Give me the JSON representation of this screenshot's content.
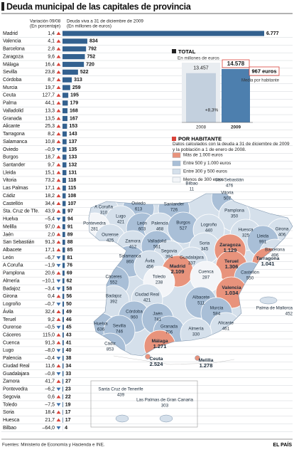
{
  "header": {
    "title": "Deuda municipal de las capitales de provincia"
  },
  "ranking": {
    "change_heading": "Variación 09/08",
    "change_unit": "(En porcentaje)",
    "debt_heading": "Deuda viva a 31 de diciembre de 2009",
    "debt_unit": "(En millones de euros)",
    "rows": [
      {
        "city": "Madrid",
        "change": "1,4",
        "debt": 6777,
        "debt_label": "6.777"
      },
      {
        "city": "Valencia",
        "change": "4,1",
        "debt": 834
      },
      {
        "city": "Barcelona",
        "change": "2,8",
        "debt": 792
      },
      {
        "city": "Zaragoza",
        "change": "9,6",
        "debt": 752
      },
      {
        "city": "Málaga",
        "change": "16,4",
        "debt": 720
      },
      {
        "city": "Sevilla",
        "change": "23,8",
        "debt": 522
      },
      {
        "city": "Córdoba",
        "change": "8,7",
        "debt": 313
      },
      {
        "city": "Murcia",
        "change": "19,7",
        "debt": 259
      },
      {
        "city": "Ceuta",
        "change": "127,7",
        "debt": 195
      },
      {
        "city": "Palma",
        "change": "44,1",
        "debt": 179
      },
      {
        "city": "Valladolid",
        "change": "13,3",
        "debt": 168
      },
      {
        "city": "Granada",
        "change": "13,5",
        "debt": 167
      },
      {
        "city": "Alicante",
        "change": "25,3",
        "debt": 153
      },
      {
        "city": "Tarragona",
        "change": "8,2",
        "debt": 143
      },
      {
        "city": "Salamanca",
        "change": "10,8",
        "debt": 137
      },
      {
        "city": "Oviedo",
        "change": "–0,9",
        "debt": 135
      },
      {
        "city": "Burgos",
        "change": "18,7",
        "debt": 133
      },
      {
        "city": "Santander",
        "change": "9,7",
        "debt": 132
      },
      {
        "city": "Lleida",
        "change": "15,1",
        "debt": 131
      },
      {
        "city": "Vitoria",
        "change": "73,2",
        "debt": 118
      },
      {
        "city": "Las Palmas",
        "change": "17,1",
        "debt": 115
      },
      {
        "city": "Cádiz",
        "change": "18,2",
        "debt": 108
      },
      {
        "city": "Castellón",
        "change": "34,4",
        "debt": 107
      },
      {
        "city": "Sta. Cruz de Tfe.",
        "change": "43,9",
        "debt": 97
      },
      {
        "city": "Huelva",
        "change": "–5,4",
        "debt": 94
      },
      {
        "city": "Melilla",
        "change": "97,0",
        "debt": 91
      },
      {
        "city": "Jaén",
        "change": "2,0",
        "debt": 89
      },
      {
        "city": "San Sebastián",
        "change": "91,3",
        "debt": 88
      },
      {
        "city": "Albacete",
        "change": "17,1",
        "debt": 85
      },
      {
        "city": "León",
        "change": "–6,7",
        "debt": 81
      },
      {
        "city": "A Coruña",
        "change": "–1,9",
        "debt": 76
      },
      {
        "city": "Pamplona",
        "change": "20,6",
        "debt": 69
      },
      {
        "city": "Almería",
        "change": "–10,1",
        "debt": 62
      },
      {
        "city": "Badajoz",
        "change": "–3,4",
        "debt": 58
      },
      {
        "city": "Girona",
        "change": "0,4",
        "debt": 56
      },
      {
        "city": "Logroño",
        "change": "–0,7",
        "debt": 50
      },
      {
        "city": "Ávila",
        "change": "32,4",
        "debt": 49
      },
      {
        "city": "Teruel",
        "change": "9,2",
        "debt": 46
      },
      {
        "city": "Ourense",
        "change": "–0,5",
        "debt": 45
      },
      {
        "city": "Cáceres",
        "change": "115,0",
        "debt": 43
      },
      {
        "city": "Cuenca",
        "change": "91,3",
        "debt": 41
      },
      {
        "city": "Lugo",
        "change": "–8,0",
        "debt": 40
      },
      {
        "city": "Palencia",
        "change": "–0,4",
        "debt": 38
      },
      {
        "city": "Ciudad Real",
        "change": "11,6",
        "debt": 34
      },
      {
        "city": "Guadalajara",
        "change": "–0,8",
        "debt": 33
      },
      {
        "city": "Zamora",
        "change": "41,7",
        "debt": 27
      },
      {
        "city": "Pontevedra",
        "change": "–6,2",
        "debt": 23
      },
      {
        "city": "Segovia",
        "change": "0,6",
        "debt": 22
      },
      {
        "city": "Toledo",
        "change": "–7,5",
        "debt": 19
      },
      {
        "city": "Soria",
        "change": "18,4",
        "debt": 17
      },
      {
        "city": "Huesca",
        "change": "21,7",
        "debt": 17
      },
      {
        "city": "Bilbao",
        "change": "–64,0",
        "debt": 4
      }
    ]
  },
  "total": {
    "title": "TOTAL",
    "unit": "En millones de euros",
    "years": [
      "2008",
      "2009"
    ],
    "values": [
      13457,
      14578
    ],
    "value_labels": [
      "13.457",
      "14.578"
    ],
    "change": "+8,3%",
    "per_capita": "967 euros",
    "per_capita_caption": "Media por habitante"
  },
  "per_capita": {
    "title": "POR HABITANTE",
    "note": "Datos calculados con la deuda a 31 de diciembre de 2009 y la población a 1 de enero de 2008.",
    "legend": [
      {
        "label": "Más de 1.000 euros",
        "min": 1000,
        "color": "#e8937c"
      },
      {
        "label": "Entre 500 y 1.000 euros",
        "min": 500,
        "color": "#a9bfd7"
      },
      {
        "label": "Entre 300 y 500 euros",
        "min": 300,
        "color": "#d5e0eb"
      },
      {
        "label": "Menos de 300 euros",
        "min": 0,
        "color": "#f3f5f8"
      }
    ],
    "cities": [
      {
        "name": "Bilbao",
        "value": 11
      },
      {
        "name": "San Sebastián",
        "value": 476
      },
      {
        "name": "Vitoria",
        "value": 507
      },
      {
        "name": "Oviedo",
        "value": 613
      },
      {
        "name": "Santander",
        "value": 726
      },
      {
        "name": "A Coruña",
        "value": 310
      },
      {
        "name": "Lugo",
        "value": 421
      },
      {
        "name": "Pamplona",
        "value": 350
      },
      {
        "name": "Pontevedra",
        "value": 281
      },
      {
        "name": "León",
        "value": 603
      },
      {
        "name": "Palencia",
        "value": 468
      },
      {
        "name": "Burgos",
        "value": 527
      },
      {
        "name": "Logroño",
        "value": 440
      },
      {
        "name": "Huesca",
        "value": 325
      },
      {
        "name": "Girona",
        "value": 406
      },
      {
        "name": "Ourense",
        "value": 425
      },
      {
        "name": "Zamora",
        "value": 412
      },
      {
        "name": "Valladolid",
        "value": 561
      },
      {
        "name": "Soria",
        "value": 345
      },
      {
        "name": "Zaragoza",
        "value": 1129,
        "value_label": "1.129"
      },
      {
        "name": "Lleida",
        "value": 991
      },
      {
        "name": "Barcelona",
        "value": 496
      },
      {
        "name": "Salamanca",
        "value": 860
      },
      {
        "name": "Segovia",
        "value": 394
      },
      {
        "name": "Guadalajara",
        "value": 337
      },
      {
        "name": "Ávila",
        "value": 456
      },
      {
        "name": "Madrid",
        "value": 2109,
        "value_label": "2.109"
      },
      {
        "name": "Teruel",
        "value": 1306,
        "value_label": "1.306"
      },
      {
        "name": "Tarragona",
        "value": 1041,
        "value_label": "1.041"
      },
      {
        "name": "Toledo",
        "value": 238
      },
      {
        "name": "Cuenca",
        "value": 287
      },
      {
        "name": "Castellón",
        "value": 550
      },
      {
        "name": "Cáceres",
        "value": 552
      },
      {
        "name": "Valencia",
        "value": 1034,
        "value_label": "1.034"
      },
      {
        "name": "Ciudad Real",
        "value": 421
      },
      {
        "name": "Badajoz",
        "value": 392
      },
      {
        "name": "Albacete",
        "value": 511
      },
      {
        "name": "Palma de Mallorca",
        "value": 452
      },
      {
        "name": "Córdoba",
        "value": 960
      },
      {
        "name": "Jaén",
        "value": 741
      },
      {
        "name": "Murcia",
        "value": 584
      },
      {
        "name": "Alicante",
        "value": 461
      },
      {
        "name": "Huelva",
        "value": 636
      },
      {
        "name": "Sevilla",
        "value": 746
      },
      {
        "name": "Granada",
        "value": 706
      },
      {
        "name": "Almería",
        "value": 330
      },
      {
        "name": "Cádiz",
        "value": 853
      },
      {
        "name": "Málaga",
        "value": 1271,
        "value_label": "1.271"
      },
      {
        "name": "Ceuta",
        "value": 2524,
        "value_label": "2.524"
      },
      {
        "name": "Melilla",
        "value": 1278,
        "value_label": "1.278"
      },
      {
        "name": "Santa Cruz de Tenerife",
        "value": 439
      },
      {
        "name": "Las Palmas de Gran Canaria",
        "value": 303
      }
    ]
  },
  "footer": {
    "source": "Fuentes: Ministerio de Economía y Hacienda e INE.",
    "brand": "EL PAÍS"
  }
}
